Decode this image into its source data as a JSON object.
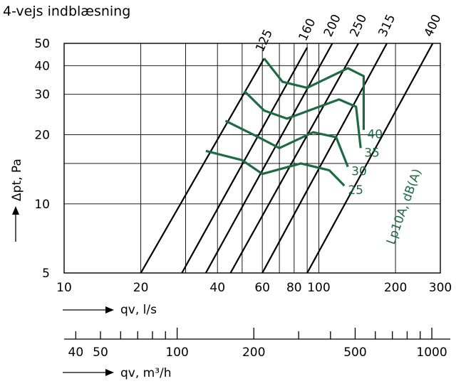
{
  "chart_data": {
    "type": "line",
    "title": "4-vejs indblæsning",
    "x_scale": "log",
    "y_scale": "log",
    "xlim": [
      10,
      300
    ],
    "ylim": [
      5,
      50
    ],
    "xlabel": "qv, l/s",
    "x2label": "qv, m³/h",
    "ylabel": "Δpt, Pa",
    "x_ticks": [
      {
        "value": 10,
        "label": "10"
      },
      {
        "value": 20,
        "label": "20"
      },
      {
        "value": 40,
        "label": "40"
      },
      {
        "value": 60,
        "label": "60"
      },
      {
        "value": 80,
        "label": "80"
      },
      {
        "value": 100,
        "label": "100"
      },
      {
        "value": 200,
        "label": "200"
      },
      {
        "value": 300,
        "label": "300"
      }
    ],
    "x_grid": [
      20,
      30,
      40,
      50,
      60,
      70,
      80,
      90,
      100,
      200,
      300
    ],
    "y_ticks": [
      {
        "value": 5,
        "label": "5"
      },
      {
        "value": 10,
        "label": "10"
      },
      {
        "value": 20,
        "label": "20"
      },
      {
        "value": 30,
        "label": "30"
      },
      {
        "value": 40,
        "label": "40"
      },
      {
        "value": 50,
        "label": "50"
      }
    ],
    "y_grid": [
      5,
      10,
      15,
      20,
      30,
      40,
      50
    ],
    "x2_ticks": [
      {
        "value": 40,
        "label": "40"
      },
      {
        "value": 50,
        "label": "50"
      },
      {
        "value": 100,
        "label": "100"
      },
      {
        "value": 200,
        "label": "200"
      },
      {
        "value": 500,
        "label": "500"
      },
      {
        "value": 1000,
        "label": "1000"
      }
    ],
    "x2_minor": [
      40,
      50,
      60,
      70,
      80,
      90,
      100,
      200,
      300,
      400,
      500,
      600,
      700,
      800,
      900,
      1000
    ],
    "size_lines": [
      {
        "label": "125",
        "points": [
          [
            20,
            5
          ],
          [
            61,
            43
          ]
        ]
      },
      {
        "label": "160",
        "points": [
          [
            29,
            5
          ],
          [
            90,
            48
          ]
        ]
      },
      {
        "label": "200",
        "points": [
          [
            36,
            5
          ],
          [
            113,
            50
          ]
        ]
      },
      {
        "label": "250",
        "points": [
          [
            45,
            5
          ],
          [
            143,
            50
          ]
        ]
      },
      {
        "label": "315",
        "points": [
          [
            60,
            5
          ],
          [
            185,
            50
          ]
        ]
      },
      {
        "label": "400",
        "points": [
          [
            90,
            5
          ],
          [
            280,
            50
          ]
        ]
      }
    ],
    "noise_label": "Lp10A, dB(A)",
    "noise_curves": [
      {
        "name": "40",
        "points": [
          [
            61,
            43
          ],
          [
            72,
            34
          ],
          [
            90,
            32
          ],
          [
            130,
            39
          ],
          [
            150,
            36
          ],
          [
            150,
            21
          ]
        ]
      },
      {
        "name": "35",
        "points": [
          [
            51,
            31
          ],
          [
            61,
            25.5
          ],
          [
            75,
            23.5
          ],
          [
            120,
            28.5
          ],
          [
            140,
            26.5
          ],
          [
            146,
            17.5
          ]
        ]
      },
      {
        "name": "30",
        "points": [
          [
            43,
            23
          ],
          [
            58,
            19.5
          ],
          [
            70,
            17.5
          ],
          [
            95,
            20.5
          ],
          [
            117,
            19.5
          ],
          [
            130,
            14.5
          ]
        ]
      },
      {
        "name": "25",
        "points": [
          [
            36,
            17
          ],
          [
            50,
            15.5
          ],
          [
            60,
            13.5
          ],
          [
            85,
            15
          ],
          [
            110,
            14
          ],
          [
            126,
            12
          ]
        ]
      }
    ]
  }
}
